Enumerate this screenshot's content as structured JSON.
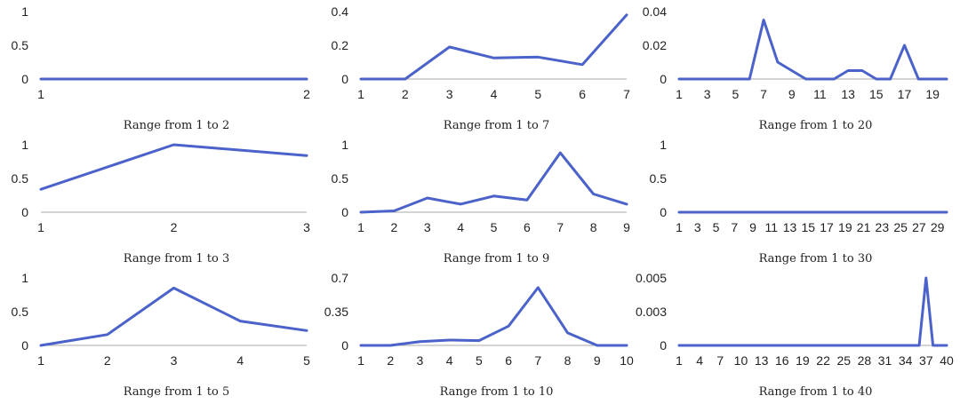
{
  "chart_data": [
    {
      "type": "line",
      "title": "Range from 1 to 2",
      "categories": [
        "1",
        "2"
      ],
      "x_tick_labels": [
        "1",
        "2"
      ],
      "values": [
        0,
        0
      ],
      "ylim": [
        0,
        1
      ],
      "y_tick_labels": [
        "0",
        "0.5",
        "1"
      ],
      "y_ticks": [
        0,
        0.5,
        1
      ]
    },
    {
      "type": "line",
      "title": "Range from 1 to 7",
      "categories": [
        "1",
        "2",
        "3",
        "4",
        "5",
        "6",
        "7"
      ],
      "x_tick_labels": [
        "1",
        "2",
        "3",
        "4",
        "5",
        "6",
        "7"
      ],
      "values": [
        0,
        0,
        0.19,
        0.125,
        0.13,
        0.085,
        0.38
      ],
      "ylim": [
        0,
        0.4
      ],
      "y_tick_labels": [
        "0",
        "0.2",
        "0.4"
      ],
      "y_ticks": [
        0,
        0.2,
        0.4
      ]
    },
    {
      "type": "line",
      "title": "Range from 1 to 20",
      "categories": [
        "1",
        "2",
        "3",
        "4",
        "5",
        "6",
        "7",
        "8",
        "9",
        "10",
        "11",
        "12",
        "13",
        "14",
        "15",
        "16",
        "17",
        "18",
        "19",
        "20"
      ],
      "x_tick_labels": [
        "1",
        "3",
        "5",
        "7",
        "9",
        "11",
        "13",
        "15",
        "17",
        "19"
      ],
      "values": [
        0,
        0,
        0,
        0,
        0,
        0,
        0.035,
        0.01,
        0.005,
        0,
        0,
        0,
        0.005,
        0.005,
        0,
        0,
        0.02,
        0,
        0,
        0
      ],
      "ylim": [
        0,
        0.04
      ],
      "y_tick_labels": [
        "0",
        "0.02",
        "0.04"
      ],
      "y_ticks": [
        0,
        0.02,
        0.04
      ]
    },
    {
      "type": "line",
      "title": "Range from 1 to 3",
      "categories": [
        "1",
        "2",
        "3"
      ],
      "x_tick_labels": [
        "1",
        "2",
        "3"
      ],
      "values": [
        0.34,
        1.0,
        0.84
      ],
      "ylim": [
        0,
        1
      ],
      "y_tick_labels": [
        "0",
        "0.5",
        "1"
      ],
      "y_ticks": [
        0,
        0.5,
        1
      ]
    },
    {
      "type": "line",
      "title": "Range from 1 to 9",
      "categories": [
        "1",
        "2",
        "3",
        "4",
        "5",
        "6",
        "7",
        "8",
        "9"
      ],
      "x_tick_labels": [
        "1",
        "2",
        "3",
        "4",
        "5",
        "6",
        "7",
        "8",
        "9"
      ],
      "values": [
        0,
        0.02,
        0.21,
        0.12,
        0.24,
        0.18,
        0.88,
        0.27,
        0.12
      ],
      "ylim": [
        0,
        1
      ],
      "y_tick_labels": [
        "0",
        "0.5",
        "1"
      ],
      "y_ticks": [
        0,
        0.5,
        1
      ]
    },
    {
      "type": "line",
      "title": "Range from 1 to 30",
      "categories": [
        "1",
        "2",
        "3",
        "4",
        "5",
        "6",
        "7",
        "8",
        "9",
        "10",
        "11",
        "12",
        "13",
        "14",
        "15",
        "16",
        "17",
        "18",
        "19",
        "20",
        "21",
        "22",
        "23",
        "24",
        "25",
        "26",
        "27",
        "28",
        "29",
        "30"
      ],
      "x_tick_labels": [
        "1",
        "3",
        "5",
        "7",
        "9",
        "11",
        "13",
        "15",
        "17",
        "19",
        "21",
        "23",
        "25",
        "27",
        "29"
      ],
      "values": [
        0,
        0,
        0,
        0,
        0,
        0,
        0,
        0,
        0,
        0,
        0,
        0,
        0,
        0,
        0,
        0,
        0,
        0,
        0,
        0,
        0,
        0,
        0,
        0,
        0,
        0,
        0,
        0,
        0,
        0
      ],
      "ylim": [
        0,
        1
      ],
      "y_tick_labels": [
        "0",
        "0.5",
        "1"
      ],
      "y_ticks": [
        0,
        0.5,
        1
      ]
    },
    {
      "type": "line",
      "title": "Range from 1 to 5",
      "categories": [
        "1",
        "2",
        "3",
        "4",
        "5"
      ],
      "x_tick_labels": [
        "1",
        "2",
        "3",
        "4",
        "5"
      ],
      "values": [
        0,
        0.16,
        0.85,
        0.36,
        0.22
      ],
      "ylim": [
        0,
        1
      ],
      "y_tick_labels": [
        "0",
        "0.5",
        "1"
      ],
      "y_ticks": [
        0,
        0.5,
        1
      ]
    },
    {
      "type": "line",
      "title": "Range from 1 to 10",
      "categories": [
        "1",
        "2",
        "3",
        "4",
        "5",
        "6",
        "7",
        "8",
        "9",
        "10"
      ],
      "x_tick_labels": [
        "1",
        "2",
        "3",
        "4",
        "5",
        "6",
        "7",
        "8",
        "9",
        "10"
      ],
      "values": [
        0,
        0,
        0.04,
        0.055,
        0.05,
        0.2,
        0.6,
        0.13,
        0,
        0
      ],
      "ylim": [
        0,
        0.7
      ],
      "y_tick_labels": [
        "0",
        "0.35",
        "0.7"
      ],
      "y_ticks": [
        0,
        0.35,
        0.7
      ]
    },
    {
      "type": "line",
      "title": "Range from 1 to 40",
      "categories": [
        "1",
        "2",
        "3",
        "4",
        "5",
        "6",
        "7",
        "8",
        "9",
        "10",
        "11",
        "12",
        "13",
        "14",
        "15",
        "16",
        "17",
        "18",
        "19",
        "20",
        "21",
        "22",
        "23",
        "24",
        "25",
        "26",
        "27",
        "28",
        "29",
        "30",
        "31",
        "32",
        "33",
        "34",
        "35",
        "36",
        "37",
        "38",
        "39",
        "40"
      ],
      "x_tick_labels": [
        "1",
        "4",
        "7",
        "10",
        "13",
        "16",
        "19",
        "22",
        "25",
        "28",
        "31",
        "34",
        "37",
        "40"
      ],
      "values": [
        0,
        0,
        0,
        0,
        0,
        0,
        0,
        0,
        0,
        0,
        0,
        0,
        0,
        0,
        0,
        0,
        0,
        0,
        0,
        0,
        0,
        0,
        0,
        0,
        0,
        0,
        0,
        0,
        0,
        0,
        0,
        0,
        0,
        0,
        0,
        0,
        0.005,
        0,
        0,
        0
      ],
      "ylim": [
        0,
        0.005
      ],
      "y_tick_labels": [
        "0",
        "0.003",
        "0.005"
      ],
      "y_ticks": [
        0,
        0.0025,
        0.005
      ]
    }
  ],
  "colors": {
    "line": "#4a62c9",
    "axis": "#aaaaaa",
    "text": "#222222"
  }
}
